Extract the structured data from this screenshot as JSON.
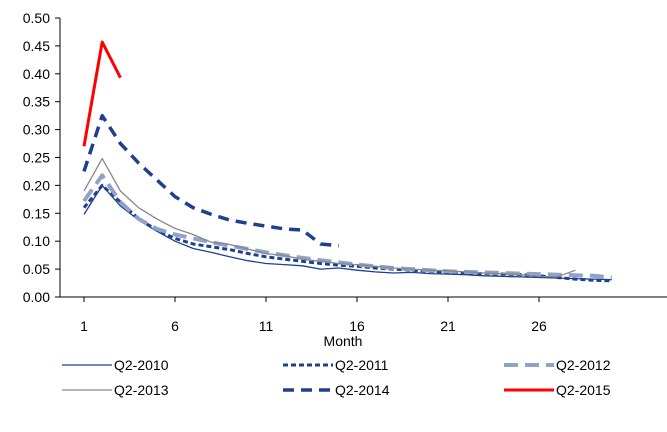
{
  "chart_data": {
    "type": "line",
    "title": "",
    "xlabel": "Month",
    "ylabel": "",
    "xlim": [
      1,
      30
    ],
    "ylim": [
      0,
      0.5
    ],
    "x_ticks": [
      1,
      6,
      11,
      16,
      21,
      26
    ],
    "y_ticks": [
      0,
      0.05,
      0.1,
      0.15,
      0.2,
      0.25,
      0.3,
      0.35,
      0.4,
      0.45,
      0.5
    ],
    "x_tick_labels": [
      "1",
      "6",
      "11",
      "16",
      "21",
      "26"
    ],
    "y_tick_labels": [
      "0.00",
      "0.05",
      "0.10",
      "0.15",
      "0.20",
      "0.25",
      "0.30",
      "0.35",
      "0.40",
      "0.45",
      "0.50"
    ],
    "grid": false,
    "legend_position": "bottom",
    "series": [
      {
        "name": "Q2-2010",
        "color": "#1f3f8f",
        "style": "solid-thin",
        "x": [
          1,
          2,
          3,
          4,
          5,
          6,
          7,
          8,
          9,
          10,
          11,
          12,
          13,
          14,
          15,
          16,
          17,
          18,
          19,
          20,
          21,
          22,
          23,
          24,
          25,
          26,
          27,
          28,
          29,
          30
        ],
        "y": [
          0.148,
          0.2,
          0.163,
          0.138,
          0.118,
          0.1,
          0.087,
          0.08,
          0.072,
          0.065,
          0.06,
          0.058,
          0.056,
          0.05,
          0.052,
          0.048,
          0.045,
          0.043,
          0.044,
          0.042,
          0.041,
          0.04,
          0.038,
          0.037,
          0.036,
          0.035,
          0.034,
          0.033,
          0.032,
          0.031
        ]
      },
      {
        "name": "Q2-2011",
        "color": "#1f3f8f",
        "style": "short-dash",
        "x": [
          1,
          2,
          3,
          4,
          5,
          6,
          7,
          8,
          9,
          10,
          11,
          12,
          13,
          14,
          15,
          16,
          17,
          18,
          19,
          20,
          21,
          22,
          23,
          24,
          25,
          26,
          27,
          28,
          29,
          30
        ],
        "y": [
          0.16,
          0.2,
          0.17,
          0.14,
          0.12,
          0.105,
          0.095,
          0.09,
          0.085,
          0.078,
          0.072,
          0.068,
          0.064,
          0.06,
          0.057,
          0.055,
          0.052,
          0.05,
          0.048,
          0.046,
          0.044,
          0.043,
          0.042,
          0.041,
          0.04,
          0.038,
          0.035,
          0.032,
          0.03,
          0.029
        ]
      },
      {
        "name": "Q2-2012",
        "color": "#8fa3c8",
        "style": "long-dash",
        "x": [
          1,
          2,
          3,
          4,
          5,
          6,
          7,
          8,
          9,
          10,
          11,
          12,
          13,
          14,
          15,
          16,
          17,
          18,
          19,
          20,
          21,
          22,
          23,
          24,
          25,
          26,
          27,
          28,
          29,
          30
        ],
        "y": [
          0.172,
          0.218,
          0.17,
          0.14,
          0.122,
          0.112,
          0.105,
          0.098,
          0.092,
          0.086,
          0.08,
          0.075,
          0.07,
          0.066,
          0.062,
          0.058,
          0.055,
          0.052,
          0.05,
          0.048,
          0.046,
          0.045,
          0.044,
          0.043,
          0.042,
          0.041,
          0.04,
          0.039,
          0.038,
          0.035
        ]
      },
      {
        "name": "Q2-2013",
        "color": "#888888",
        "style": "solid-thin",
        "x": [
          1,
          2,
          3,
          4,
          5,
          6,
          7,
          8,
          9,
          10,
          11,
          12,
          13,
          14,
          15,
          16,
          17,
          18,
          19,
          20,
          21,
          22,
          23,
          24,
          25,
          26,
          27,
          28
        ],
        "y": [
          0.19,
          0.248,
          0.19,
          0.16,
          0.14,
          0.123,
          0.112,
          0.098,
          0.094,
          0.086,
          0.078,
          0.074,
          0.068,
          0.064,
          0.06,
          0.058,
          0.055,
          0.052,
          0.05,
          0.048,
          0.047,
          0.045,
          0.043,
          0.042,
          0.04,
          0.037,
          0.036,
          0.048
        ]
      },
      {
        "name": "Q2-2014",
        "color": "#1f3f8f",
        "style": "dash-thick",
        "x": [
          1,
          2,
          3,
          4,
          5,
          6,
          7,
          8,
          9,
          10,
          11,
          12,
          13,
          14,
          15
        ],
        "y": [
          0.225,
          0.325,
          0.275,
          0.24,
          0.21,
          0.18,
          0.16,
          0.148,
          0.138,
          0.132,
          0.127,
          0.122,
          0.12,
          0.095,
          0.092
        ]
      },
      {
        "name": "Q2-2015",
        "color": "#ff0000",
        "style": "solid-thick",
        "x": [
          1,
          2,
          3
        ],
        "y": [
          0.27,
          0.457,
          0.393
        ]
      }
    ]
  }
}
